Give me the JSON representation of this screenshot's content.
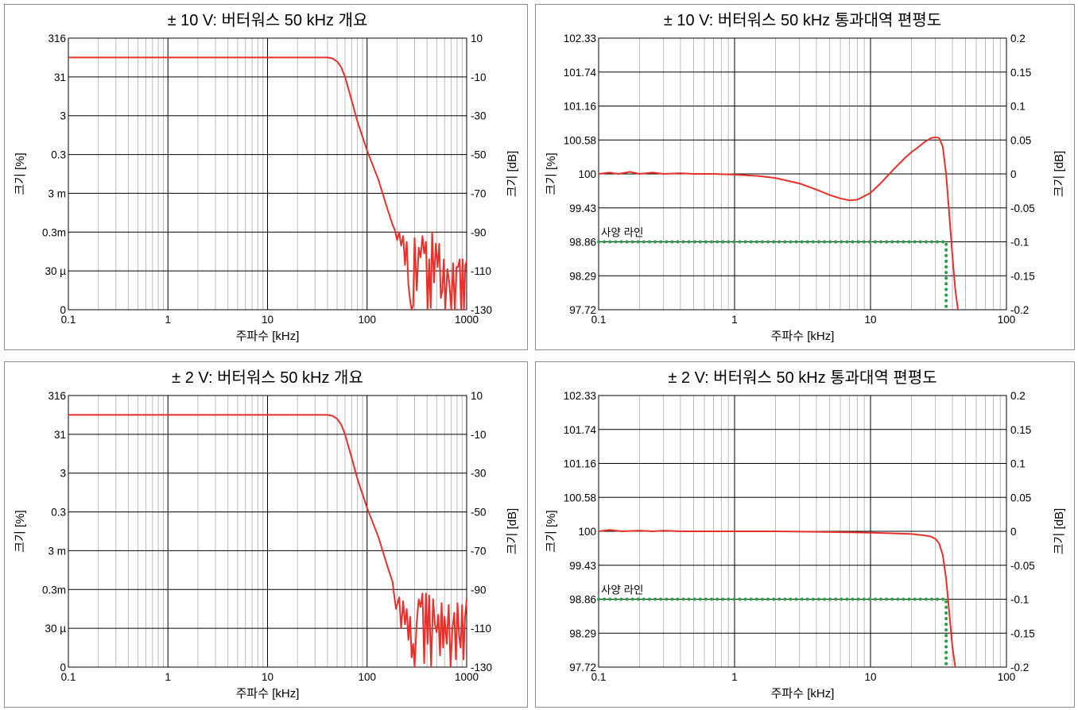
{
  "colors": {
    "trace": "#e8302a",
    "spec": "#22a442",
    "grid_major": "#000000",
    "grid_minor": "#bcbcbc",
    "border": "#8c8c8c"
  },
  "chart_data": [
    {
      "type": "line",
      "title": "± 10 V: 버터워스 50 kHz 개요",
      "xlabel": "주파수 [kHz]",
      "ylabel_left": "크기 [%]",
      "ylabel_right": "크기 [dB]",
      "x_scale": "log",
      "xlim": [
        0.1,
        1000
      ],
      "x_ticks": [
        0.1,
        1,
        10,
        100,
        1000
      ],
      "x_tick_labels": [
        "0.1",
        "1",
        "10",
        "100",
        "1000"
      ],
      "ylim_db": [
        -130,
        10
      ],
      "right_ticks": [
        10,
        -10,
        -30,
        -50,
        -70,
        -90,
        -110,
        -130
      ],
      "right_tick_labels": [
        "10",
        "-10",
        "-30",
        "-50",
        "-70",
        "-90",
        "-110",
        "-130"
      ],
      "left_tick_labels": [
        "316",
        "31",
        "3",
        "0.3",
        "3 m",
        "0.3m",
        "30 µ",
        "0"
      ],
      "reference_line_db": 0,
      "series": [
        {
          "unit": "dB",
          "x": [
            0.1,
            1,
            10,
            30,
            40,
            45,
            50,
            55,
            60,
            70,
            80,
            100,
            130,
            160,
            180,
            190,
            200,
            210,
            220,
            230,
            240,
            250,
            260,
            270,
            280,
            290,
            300,
            315,
            330,
            345,
            360,
            375,
            390,
            405,
            420,
            435,
            450,
            470,
            490,
            510,
            530,
            550,
            570,
            590,
            610,
            640,
            670,
            700,
            730,
            760,
            790,
            820,
            850,
            880,
            910,
            940,
            970,
            1000
          ],
          "y": [
            0,
            0,
            0,
            0,
            0,
            -0.5,
            -2,
            -5,
            -10,
            -22,
            -33,
            -48,
            -63,
            -78,
            -86,
            -89,
            -94,
            -90,
            -97,
            -92,
            -107,
            -95,
            -117,
            -125,
            -130,
            -128,
            -93,
            -120,
            -98,
            -103,
            -92,
            -101,
            -95,
            -130,
            -104,
            -129,
            -90,
            -116,
            -96,
            -108,
            -96,
            -124,
            -120,
            -104,
            -130,
            -109,
            -116,
            -130,
            -106,
            -130,
            -108,
            -108,
            -104,
            -130,
            -104,
            -130,
            -107,
            -105
          ]
        }
      ]
    },
    {
      "type": "line",
      "title": "± 10 V: 버터워스 50 kHz 통과대역 편평도",
      "xlabel": "주파수 [kHz]",
      "ylabel_left": "크기 [%]",
      "ylabel_right": "크기 [dB]",
      "x_scale": "log",
      "xlim": [
        0.1,
        100
      ],
      "x_ticks": [
        0.1,
        1,
        10,
        100
      ],
      "x_tick_labels": [
        "0.1",
        "1",
        "10",
        "100"
      ],
      "ylim_db": [
        -0.2,
        0.2
      ],
      "right_ticks": [
        0.2,
        0.15,
        0.1,
        0.05,
        0,
        -0.05,
        -0.1,
        -0.15,
        -0.2
      ],
      "right_tick_labels": [
        "0.2",
        "0.15",
        "0.1",
        "0.05",
        "0",
        "-0.05",
        "-0.1",
        "-0.15",
        "-0.2"
      ],
      "left_tick_labels": [
        "102.33",
        "101.74",
        "101.16",
        "100.58",
        "100",
        "99.43",
        "98.86",
        "98.29",
        "97.72"
      ],
      "spec_line": {
        "label": "사양 라인",
        "value_db": -0.1,
        "corner_khz": 36
      },
      "series": [
        {
          "unit": "dB",
          "x": [
            0.1,
            0.12,
            0.14,
            0.17,
            0.2,
            0.25,
            0.3,
            0.4,
            0.5,
            0.7,
            1,
            1.5,
            2,
            3,
            4,
            5,
            6,
            7,
            8,
            10,
            12,
            15,
            18,
            20,
            22,
            25,
            28,
            30,
            32,
            34,
            36,
            38,
            40,
            42,
            44
          ],
          "y": [
            0,
            0.002,
            0,
            0.003,
            0,
            0.002,
            0,
            0.001,
            0,
            0,
            -0.001,
            -0.003,
            -0.006,
            -0.014,
            -0.023,
            -0.031,
            -0.036,
            -0.039,
            -0.038,
            -0.028,
            -0.013,
            0.008,
            0.024,
            0.032,
            0.038,
            0.047,
            0.053,
            0.054,
            0.053,
            0.04,
            0.0,
            -0.06,
            -0.12,
            -0.17,
            -0.2
          ]
        }
      ]
    },
    {
      "type": "line",
      "title": "± 2 V: 버터워스 50 kHz 개요",
      "xlabel": "주파수 [kHz]",
      "ylabel_left": "크기 [%]",
      "ylabel_right": "크기 [dB]",
      "x_scale": "log",
      "xlim": [
        0.1,
        1000
      ],
      "x_ticks": [
        0.1,
        1,
        10,
        100,
        1000
      ],
      "x_tick_labels": [
        "0.1",
        "1",
        "10",
        "100",
        "1000"
      ],
      "ylim_db": [
        -130,
        10
      ],
      "right_ticks": [
        10,
        -10,
        -30,
        -50,
        -70,
        -90,
        -110,
        -130
      ],
      "right_tick_labels": [
        "10",
        "-10",
        "-30",
        "-50",
        "-70",
        "-90",
        "-110",
        "-130"
      ],
      "left_tick_labels": [
        "316",
        "31",
        "3",
        "0.3",
        "3 m",
        "0.3m",
        "30 µ",
        "0"
      ],
      "reference_line_db": 0,
      "series": [
        {
          "unit": "dB",
          "x": [
            0.1,
            1,
            10,
            30,
            40,
            45,
            50,
            55,
            60,
            70,
            80,
            100,
            130,
            160,
            180,
            195,
            210,
            220,
            230,
            240,
            250,
            260,
            270,
            280,
            290,
            300,
            315,
            330,
            345,
            360,
            375,
            390,
            405,
            420,
            440,
            460,
            480,
            500,
            520,
            540,
            560,
            580,
            600,
            630,
            660,
            690,
            720,
            750,
            780,
            810,
            840,
            870,
            900,
            930,
            960,
            1000
          ],
          "y": [
            0,
            0,
            0,
            0,
            0,
            -0.5,
            -2,
            -5,
            -10,
            -22,
            -33,
            -48,
            -63,
            -78,
            -86,
            -100,
            -94,
            -110,
            -96,
            -108,
            -100,
            -116,
            -104,
            -125,
            -118,
            -130,
            -107,
            -95,
            -99,
            -92,
            -128,
            -92,
            -118,
            -93,
            -130,
            -95,
            -108,
            -112,
            -103,
            -124,
            -97,
            -120,
            -104,
            -118,
            -98,
            -130,
            -110,
            -102,
            -126,
            -97,
            -114,
            -120,
            -98,
            -126,
            -105,
            -95
          ]
        }
      ]
    },
    {
      "type": "line",
      "title": "± 2 V: 버터워스 50 kHz 통과대역 편평도",
      "xlabel": "주파수 [kHz]",
      "ylabel_left": "크기 [%]",
      "ylabel_right": "크기 [dB]",
      "x_scale": "log",
      "xlim": [
        0.1,
        100
      ],
      "x_ticks": [
        0.1,
        1,
        10,
        100
      ],
      "x_tick_labels": [
        "0.1",
        "1",
        "10",
        "100"
      ],
      "ylim_db": [
        -0.2,
        0.2
      ],
      "right_ticks": [
        0.2,
        0.15,
        0.1,
        0.05,
        0,
        -0.05,
        -0.1,
        -0.15,
        -0.2
      ],
      "right_tick_labels": [
        "0.2",
        "0.15",
        "0.1",
        "0.05",
        "0",
        "-0.05",
        "-0.1",
        "-0.15",
        "-0.2"
      ],
      "left_tick_labels": [
        "102.33",
        "101.74",
        "101.16",
        "100.58",
        "100",
        "99.43",
        "98.86",
        "98.29",
        "97.72"
      ],
      "spec_line": {
        "label": "사양 라인",
        "value_db": -0.1,
        "corner_khz": 36
      },
      "series": [
        {
          "unit": "dB",
          "x": [
            0.1,
            0.12,
            0.15,
            0.2,
            0.25,
            0.3,
            0.4,
            0.6,
            1,
            2,
            5,
            10,
            15,
            20,
            25,
            28,
            30,
            32,
            34,
            36,
            38,
            40,
            42
          ],
          "y": [
            0,
            0.002,
            0,
            0.001,
            0,
            0.001,
            0,
            0,
            0,
            0,
            -0.001,
            -0.002,
            -0.003,
            -0.004,
            -0.006,
            -0.008,
            -0.011,
            -0.018,
            -0.035,
            -0.07,
            -0.12,
            -0.17,
            -0.2
          ]
        }
      ]
    }
  ]
}
